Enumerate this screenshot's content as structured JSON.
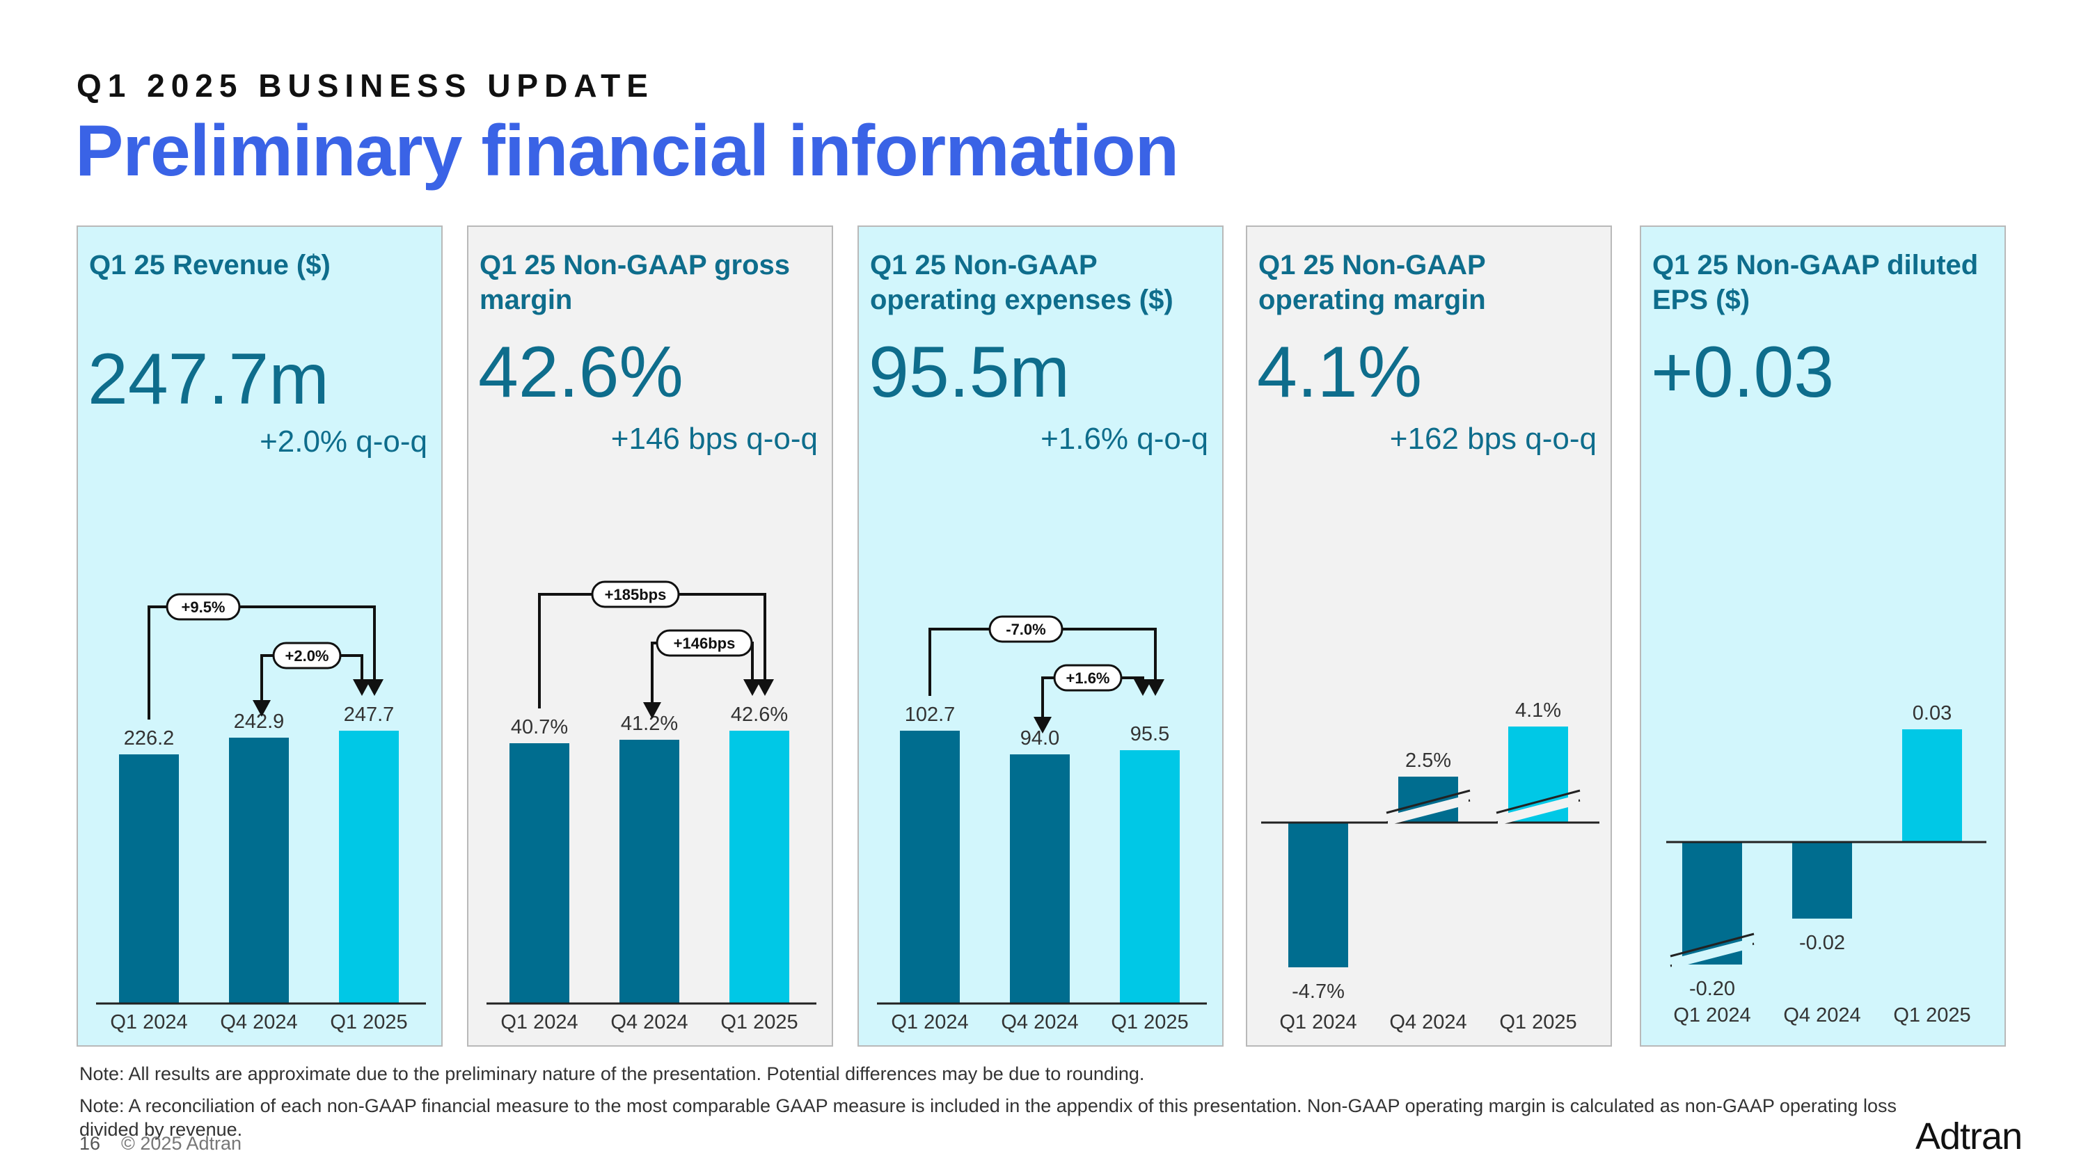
{
  "header": {
    "kicker": "Q1 2025 BUSINESS UPDATE",
    "title": "Preliminary financial information"
  },
  "colors": {
    "accent": "#3a63e6",
    "teal_text": "#0e6d8c",
    "bar_dark": "#006d8f",
    "bar_light": "#00c8e6",
    "panel_cyan": "#d2f6fc",
    "panel_grey": "#f2f2f2"
  },
  "panels": [
    {
      "title": "Q1 25 Revenue ($)",
      "value": "247.7m",
      "change": "+2.0% q-o-q"
    },
    {
      "title": "Q1 25 Non-GAAP gross margin",
      "value": "42.6%",
      "change": "+146 bps q-o-q"
    },
    {
      "title": "Q1 25 Non-GAAP operating expenses ($)",
      "value": "95.5m",
      "change": "+1.6% q-o-q"
    },
    {
      "title": "Q1 25 Non-GAAP operating margin",
      "value": "4.1%",
      "change": "+162 bps q-o-q"
    },
    {
      "title": "Q1 25 Non-GAAP diluted EPS ($)",
      "value": "+0.03",
      "change": ""
    }
  ],
  "chart_data": [
    {
      "type": "bar",
      "title": "Q1 25 Revenue ($)",
      "categories": [
        "Q1 2024",
        "Q4 2024",
        "Q1 2025"
      ],
      "values": [
        226.2,
        242.9,
        247.7
      ],
      "labels": [
        "226.2",
        "242.9",
        "247.7"
      ],
      "annotations": [
        "+9.5%",
        "+2.0%"
      ]
    },
    {
      "type": "bar",
      "title": "Q1 25 Non-GAAP gross margin",
      "categories": [
        "Q1 2024",
        "Q4 2024",
        "Q1 2025"
      ],
      "values": [
        40.7,
        41.2,
        42.6
      ],
      "labels": [
        "40.7%",
        "41.2%",
        "42.6%"
      ],
      "annotations": [
        "+185bps",
        "+146bps"
      ]
    },
    {
      "type": "bar",
      "title": "Q1 25 Non-GAAP operating expenses ($)",
      "categories": [
        "Q1 2024",
        "Q4 2024",
        "Q1 2025"
      ],
      "values": [
        102.7,
        94.0,
        95.5
      ],
      "labels": [
        "102.7",
        "94.0",
        "95.5"
      ],
      "annotations": [
        "-7.0%",
        "+1.6%"
      ]
    },
    {
      "type": "bar",
      "title": "Q1 25 Non-GAAP operating margin",
      "categories": [
        "Q1 2024",
        "Q4 2024",
        "Q1 2025"
      ],
      "values": [
        -4.7,
        2.5,
        4.1
      ],
      "labels": [
        "-4.7%",
        "2.5%",
        "4.1%"
      ],
      "annotations": []
    },
    {
      "type": "bar",
      "title": "Q1 25 Non-GAAP diluted EPS ($)",
      "categories": [
        "Q1 2024",
        "Q4 2024",
        "Q1 2025"
      ],
      "values": [
        -0.2,
        -0.02,
        0.03
      ],
      "labels": [
        "-0.20",
        "-0.02",
        "0.03"
      ],
      "annotations": []
    }
  ],
  "notes": [
    "Note: All results are approximate due to the preliminary nature of the presentation. Potential differences may be due to rounding.",
    "Note: A reconciliation of each non-GAAP financial measure to the most comparable GAAP measure is included in the appendix of this presentation. Non-GAAP operating margin is calculated as non-GAAP operating loss divided by revenue."
  ],
  "footer": {
    "page_number": "16",
    "copyright": "© 2025 Adtran",
    "logo_text": "Adtran"
  }
}
